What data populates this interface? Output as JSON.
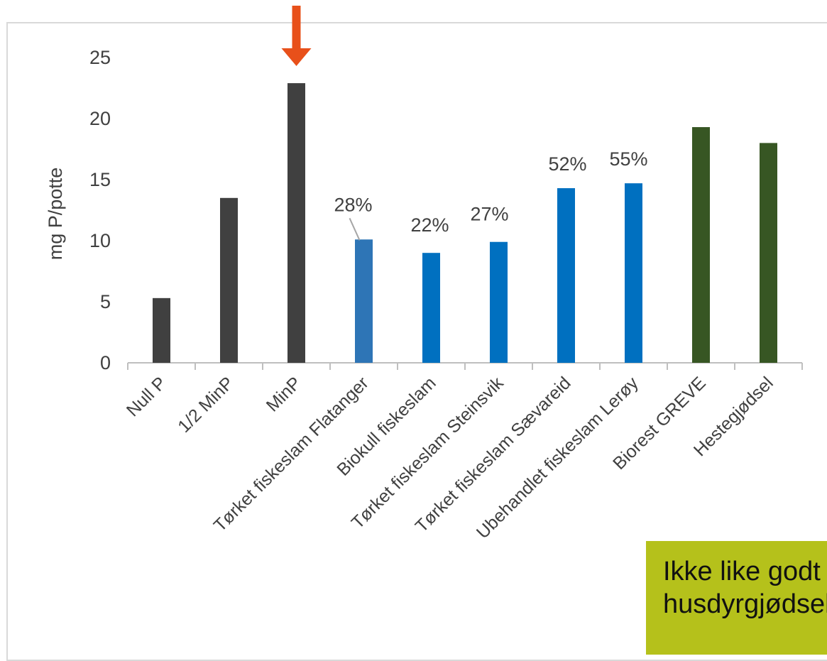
{
  "chart_data": {
    "type": "bar",
    "ylabel": "mg P/potte",
    "ylim": [
      0,
      25
    ],
    "yticks": [
      0,
      5,
      10,
      15,
      20,
      25
    ],
    "grid": false,
    "categories": [
      "Null P",
      "1/2 MinP",
      "MinP",
      "Tørket fiskeslam Flatanger",
      "Biokull fiskeslam",
      "Tørket fiskeslam Steinsvik",
      "Tørket fiskeslam Sævareid",
      "Ubehandlet fiskeslam Lerøy",
      "Biorest GREVE",
      "Hestegjødsel"
    ],
    "values": [
      5.3,
      13.5,
      22.9,
      10.1,
      9.0,
      9.9,
      14.3,
      14.7,
      19.3,
      18.0
    ],
    "bar_colors": [
      "#404040",
      "#404040",
      "#404040",
      "#2e75b6",
      "#0070c0",
      "#0070c0",
      "#0070c0",
      "#0070c0",
      "#375623",
      "#375623"
    ],
    "data_labels": [
      "",
      "",
      "",
      "28%",
      "22%",
      "27%",
      "52%",
      "55%",
      "",
      ""
    ],
    "highlight_category": "MinP",
    "highlight_color": "#e8501a"
  },
  "callout": {
    "line1": "Ikke like godt som",
    "line2": "husdyrgjødsel",
    "color": "#b5c11b"
  }
}
